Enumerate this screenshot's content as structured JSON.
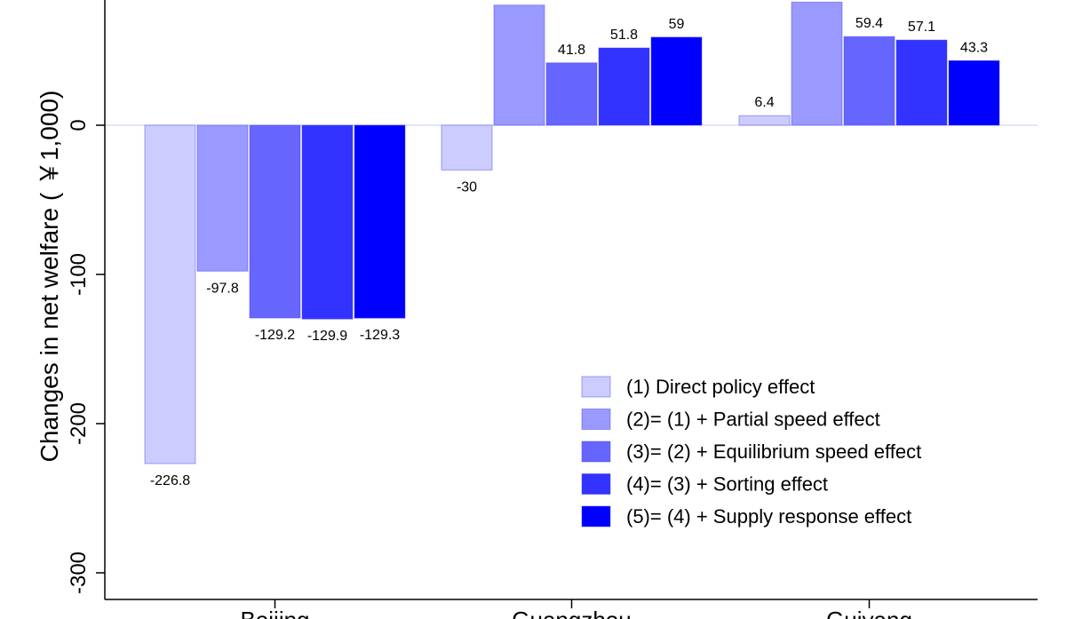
{
  "chart_data": {
    "type": "bar",
    "ylabel": "Changes in net welfare ( ￥1,000)",
    "yticks": [
      "0",
      "-100",
      "-200",
      "-300"
    ],
    "ylim": [
      -317,
      83
    ],
    "categories": [
      "Beijing",
      "Guangzhou",
      "Guiyang"
    ],
    "series": [
      {
        "name": "(1) Direct policy effect",
        "color": "#ccccff",
        "values": [
          -226.8,
          -30,
          6.4
        ],
        "labels": [
          "-226.8",
          "-30",
          "6.4"
        ]
      },
      {
        "name": "(2)= (1) + Partial speed effect",
        "color": "#9999ff",
        "values": [
          -97.8,
          80.5,
          82.5
        ],
        "labels": [
          "-97.8",
          "",
          ""
        ]
      },
      {
        "name": "(3)= (2) + Equilibrium speed effect",
        "color": "#6666ff",
        "values": [
          -129.2,
          41.8,
          59.4
        ],
        "labels": [
          "-129.2",
          "41.8",
          "59.4"
        ]
      },
      {
        "name": "(4)= (3) + Sorting effect",
        "color": "#3333ff",
        "values": [
          -129.9,
          51.8,
          57.1
        ],
        "labels": [
          "-129.9",
          "51.8",
          "57.1"
        ]
      },
      {
        "name": "(5)= (4) + Supply response effect",
        "color": "#0000ff",
        "values": [
          -129.3,
          59,
          43.3
        ],
        "labels": [
          "-129.3",
          "59",
          "43.3"
        ]
      }
    ],
    "legend_position": "bottom-right",
    "grid": false
  }
}
